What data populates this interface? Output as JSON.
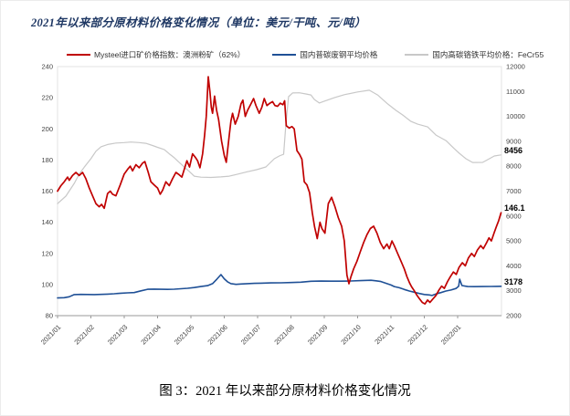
{
  "page": {
    "title": "2021年以来部分原材料价格变化情况（单位：美元/干吨、元/吨）",
    "title_color": "#1f3864",
    "caption": "图 3：2021 年以来部分原材料价格变化情况"
  },
  "legend": {
    "items": [
      {
        "label": "Mysteel进口矿价格指数：澳洲粉矿（62%）",
        "color": "#c00000"
      },
      {
        "label": "国内普碳废钢平均价格",
        "color": "#1f5096"
      },
      {
        "label": "国内高碳铬铁平均价格：FeCr55",
        "color": "#c8c8c8"
      }
    ]
  },
  "chart_data": {
    "type": "line",
    "title": "2021年以来部分原材料价格变化情况",
    "x_unit": "months_since_2021_01",
    "x_axis": {
      "tick_labels": [
        "2021/01",
        "2021/02",
        "2021/03",
        "2021/04",
        "2021/05",
        "2021/06",
        "2021/07",
        "2021/08",
        "2021/09",
        "2021/10",
        "2021/11",
        "2021/12",
        "2022/01"
      ]
    },
    "left_axis": {
      "min": 80,
      "max": 240,
      "ticks": [
        240,
        220,
        200,
        180,
        160,
        140,
        120,
        100,
        80
      ]
    },
    "right_axis": {
      "min": 2000,
      "max": 12000,
      "ticks": [
        12000,
        11000,
        10000,
        9000,
        8000,
        7000,
        6000,
        5000,
        4000,
        3000,
        2000
      ]
    },
    "grid": false,
    "legend_position": "top",
    "series": [
      {
        "id": "ferrochrome",
        "name": "国内高碳铬铁平均价格：FeCr55",
        "axis": "right",
        "color": "#c8c8c8",
        "end_label": "8456",
        "points": [
          [
            0,
            6500
          ],
          [
            0.25,
            6800
          ],
          [
            0.5,
            7310
          ],
          [
            0.65,
            7680
          ],
          [
            0.8,
            7960
          ],
          [
            1.0,
            8300
          ],
          [
            1.15,
            8600
          ],
          [
            1.3,
            8780
          ],
          [
            1.5,
            8870
          ],
          [
            1.75,
            8930
          ],
          [
            2.0,
            8950
          ],
          [
            2.2,
            8970
          ],
          [
            2.45,
            8950
          ],
          [
            2.65,
            8920
          ],
          [
            2.85,
            8830
          ],
          [
            3.0,
            8760
          ],
          [
            3.2,
            8670
          ],
          [
            3.35,
            8500
          ],
          [
            3.5,
            8340
          ],
          [
            3.65,
            8150
          ],
          [
            3.8,
            7970
          ],
          [
            3.95,
            7790
          ],
          [
            4.1,
            7600
          ],
          [
            4.3,
            7560
          ],
          [
            4.6,
            7550
          ],
          [
            4.9,
            7570
          ],
          [
            5.15,
            7600
          ],
          [
            5.4,
            7680
          ],
          [
            5.7,
            7780
          ],
          [
            5.97,
            7860
          ],
          [
            6.25,
            7970
          ],
          [
            6.5,
            8300
          ],
          [
            6.65,
            8410
          ],
          [
            6.78,
            8480
          ],
          [
            6.85,
            9700
          ],
          [
            6.93,
            10790
          ],
          [
            7.05,
            10940
          ],
          [
            7.25,
            10950
          ],
          [
            7.45,
            10900
          ],
          [
            7.6,
            10860
          ],
          [
            7.7,
            10680
          ],
          [
            7.85,
            10540
          ],
          [
            8.0,
            10610
          ],
          [
            8.3,
            10750
          ],
          [
            8.6,
            10870
          ],
          [
            9.0,
            10980
          ],
          [
            9.35,
            11050
          ],
          [
            9.6,
            10860
          ],
          [
            9.9,
            10500
          ],
          [
            10.15,
            10240
          ],
          [
            10.35,
            10060
          ],
          [
            10.6,
            9800
          ],
          [
            10.8,
            9690
          ],
          [
            11.1,
            9580
          ],
          [
            11.35,
            9250
          ],
          [
            11.65,
            9030
          ],
          [
            11.9,
            8700
          ],
          [
            12.05,
            8520
          ],
          [
            12.25,
            8300
          ],
          [
            12.45,
            8150
          ],
          [
            12.75,
            8155
          ],
          [
            12.95,
            8300
          ],
          [
            13.1,
            8410
          ],
          [
            13.3,
            8456
          ]
        ]
      },
      {
        "id": "scrap-steel",
        "name": "国内普碳废钢平均价格",
        "axis": "right",
        "color": "#1f5096",
        "end_label": "3178",
        "points": [
          [
            0,
            2710
          ],
          [
            0.2,
            2720
          ],
          [
            0.35,
            2760
          ],
          [
            0.5,
            2845
          ],
          [
            0.7,
            2855
          ],
          [
            0.9,
            2850
          ],
          [
            1.1,
            2845
          ],
          [
            1.3,
            2855
          ],
          [
            1.5,
            2865
          ],
          [
            1.7,
            2880
          ],
          [
            1.9,
            2900
          ],
          [
            2.1,
            2915
          ],
          [
            2.3,
            2925
          ],
          [
            2.5,
            2995
          ],
          [
            2.7,
            3060
          ],
          [
            2.9,
            3065
          ],
          [
            3.1,
            3060
          ],
          [
            3.3,
            3055
          ],
          [
            3.5,
            3062
          ],
          [
            3.7,
            3080
          ],
          [
            3.9,
            3100
          ],
          [
            4.1,
            3130
          ],
          [
            4.3,
            3170
          ],
          [
            4.5,
            3205
          ],
          [
            4.65,
            3285
          ],
          [
            4.78,
            3470
          ],
          [
            4.9,
            3650
          ],
          [
            5.0,
            3480
          ],
          [
            5.1,
            3360
          ],
          [
            5.2,
            3285
          ],
          [
            5.35,
            3255
          ],
          [
            5.5,
            3270
          ],
          [
            5.7,
            3285
          ],
          [
            5.9,
            3295
          ],
          [
            6.1,
            3305
          ],
          [
            6.4,
            3315
          ],
          [
            6.7,
            3320
          ],
          [
            7.0,
            3330
          ],
          [
            7.3,
            3345
          ],
          [
            7.6,
            3380
          ],
          [
            7.9,
            3390
          ],
          [
            8.2,
            3385
          ],
          [
            8.5,
            3385
          ],
          [
            8.8,
            3392
          ],
          [
            9.1,
            3405
          ],
          [
            9.4,
            3420
          ],
          [
            9.55,
            3400
          ],
          [
            9.7,
            3370
          ],
          [
            9.85,
            3300
          ],
          [
            10.0,
            3230
          ],
          [
            10.1,
            3170
          ],
          [
            10.25,
            3120
          ],
          [
            10.4,
            3050
          ],
          [
            10.55,
            2990
          ],
          [
            10.7,
            2940
          ],
          [
            10.85,
            2890
          ],
          [
            11.0,
            2850
          ],
          [
            11.15,
            2830
          ],
          [
            11.23,
            2810
          ],
          [
            11.35,
            2870
          ],
          [
            11.5,
            2925
          ],
          [
            11.65,
            2990
          ],
          [
            11.8,
            3030
          ],
          [
            11.95,
            3090
          ],
          [
            12.03,
            3180
          ],
          [
            12.06,
            3466
          ],
          [
            12.13,
            3210
          ],
          [
            12.3,
            3170
          ],
          [
            12.5,
            3165
          ],
          [
            12.75,
            3168
          ],
          [
            13.0,
            3172
          ],
          [
            13.15,
            3175
          ],
          [
            13.3,
            3178
          ]
        ]
      },
      {
        "id": "iron-ore-index",
        "name": "Mysteel进口矿价格指数：澳洲粉矿（62%）",
        "axis": "left",
        "color": "#c00000",
        "end_label": "146.1",
        "points": [
          [
            0,
            160
          ],
          [
            0.1,
            163.5
          ],
          [
            0.2,
            166
          ],
          [
            0.3,
            169
          ],
          [
            0.35,
            167
          ],
          [
            0.45,
            170
          ],
          [
            0.55,
            172
          ],
          [
            0.65,
            170
          ],
          [
            0.75,
            172
          ],
          [
            0.85,
            168
          ],
          [
            0.95,
            162
          ],
          [
            1.05,
            157
          ],
          [
            1.15,
            152
          ],
          [
            1.25,
            150
          ],
          [
            1.32,
            151.5
          ],
          [
            1.4,
            149
          ],
          [
            1.5,
            158.5
          ],
          [
            1.58,
            160
          ],
          [
            1.65,
            158
          ],
          [
            1.75,
            157
          ],
          [
            1.88,
            164
          ],
          [
            2.0,
            171
          ],
          [
            2.1,
            174
          ],
          [
            2.18,
            176
          ],
          [
            2.25,
            173
          ],
          [
            2.35,
            177
          ],
          [
            2.45,
            175
          ],
          [
            2.55,
            178
          ],
          [
            2.62,
            179
          ],
          [
            2.72,
            172
          ],
          [
            2.8,
            166
          ],
          [
            2.9,
            164
          ],
          [
            3.0,
            162
          ],
          [
            3.08,
            158
          ],
          [
            3.15,
            160.5
          ],
          [
            3.25,
            166
          ],
          [
            3.35,
            163.5
          ],
          [
            3.45,
            168
          ],
          [
            3.55,
            172
          ],
          [
            3.65,
            170.5
          ],
          [
            3.73,
            169
          ],
          [
            3.88,
            179.5
          ],
          [
            3.96,
            175.5
          ],
          [
            4.05,
            184
          ],
          [
            4.14,
            181.5
          ],
          [
            4.2,
            179.5
          ],
          [
            4.27,
            175
          ],
          [
            4.35,
            184
          ],
          [
            4.41,
            196
          ],
          [
            4.46,
            208
          ],
          [
            4.52,
            233.5
          ],
          [
            4.57,
            224
          ],
          [
            4.61,
            214
          ],
          [
            4.65,
            210
          ],
          [
            4.71,
            221
          ],
          [
            4.77,
            212
          ],
          [
            4.83,
            206
          ],
          [
            4.92,
            192
          ],
          [
            5.0,
            183
          ],
          [
            5.06,
            178.5
          ],
          [
            5.15,
            196
          ],
          [
            5.2,
            205
          ],
          [
            5.25,
            210
          ],
          [
            5.33,
            203
          ],
          [
            5.42,
            208
          ],
          [
            5.5,
            216
          ],
          [
            5.56,
            218.5
          ],
          [
            5.63,
            208
          ],
          [
            5.7,
            212
          ],
          [
            5.8,
            216
          ],
          [
            5.88,
            219.5
          ],
          [
            5.95,
            215
          ],
          [
            6.05,
            210
          ],
          [
            6.13,
            214
          ],
          [
            6.2,
            219.5
          ],
          [
            6.28,
            215
          ],
          [
            6.37,
            216.5
          ],
          [
            6.45,
            217.5
          ],
          [
            6.52,
            215
          ],
          [
            6.6,
            214.5
          ],
          [
            6.68,
            216.5
          ],
          [
            6.76,
            215.5
          ],
          [
            6.81,
            218
          ],
          [
            6.86,
            202
          ],
          [
            6.95,
            200.5
          ],
          [
            7.03,
            201.5
          ],
          [
            7.1,
            200
          ],
          [
            7.18,
            186
          ],
          [
            7.26,
            183.5
          ],
          [
            7.33,
            180.5
          ],
          [
            7.4,
            166
          ],
          [
            7.48,
            164
          ],
          [
            7.56,
            159
          ],
          [
            7.64,
            146
          ],
          [
            7.71,
            137
          ],
          [
            7.79,
            129.5
          ],
          [
            7.87,
            140
          ],
          [
            7.93,
            136
          ],
          [
            8.02,
            133
          ],
          [
            8.12,
            152
          ],
          [
            8.22,
            156
          ],
          [
            8.32,
            150
          ],
          [
            8.42,
            143
          ],
          [
            8.52,
            137.5
          ],
          [
            8.6,
            128
          ],
          [
            8.68,
            106
          ],
          [
            8.74,
            100.5
          ],
          [
            8.8,
            105
          ],
          [
            8.88,
            110
          ],
          [
            8.98,
            115
          ],
          [
            9.08,
            121
          ],
          [
            9.18,
            127
          ],
          [
            9.28,
            132
          ],
          [
            9.38,
            136
          ],
          [
            9.48,
            137.5
          ],
          [
            9.58,
            133
          ],
          [
            9.68,
            127
          ],
          [
            9.78,
            123
          ],
          [
            9.88,
            126
          ],
          [
            9.95,
            123
          ],
          [
            10.03,
            128
          ],
          [
            10.1,
            125
          ],
          [
            10.2,
            120
          ],
          [
            10.3,
            115
          ],
          [
            10.4,
            110
          ],
          [
            10.48,
            105
          ],
          [
            10.56,
            101
          ],
          [
            10.62,
            98.5
          ],
          [
            10.7,
            96
          ],
          [
            10.78,
            93
          ],
          [
            10.85,
            91
          ],
          [
            10.94,
            88.5
          ],
          [
            11.02,
            87.5
          ],
          [
            11.1,
            90
          ],
          [
            11.17,
            88.5
          ],
          [
            11.25,
            90.5
          ],
          [
            11.35,
            93
          ],
          [
            11.44,
            96.5
          ],
          [
            11.52,
            99
          ],
          [
            11.6,
            97.5
          ],
          [
            11.7,
            102
          ],
          [
            11.78,
            105
          ],
          [
            11.87,
            108
          ],
          [
            11.96,
            106.5
          ],
          [
            12.04,
            111
          ],
          [
            12.14,
            114
          ],
          [
            12.23,
            112
          ],
          [
            12.32,
            117
          ],
          [
            12.42,
            120
          ],
          [
            12.5,
            118
          ],
          [
            12.59,
            122
          ],
          [
            12.69,
            125
          ],
          [
            12.77,
            123
          ],
          [
            12.87,
            127
          ],
          [
            12.94,
            130
          ],
          [
            13.01,
            128
          ],
          [
            13.09,
            133
          ],
          [
            13.16,
            137
          ],
          [
            13.23,
            141
          ],
          [
            13.3,
            146.1
          ]
        ]
      }
    ]
  }
}
